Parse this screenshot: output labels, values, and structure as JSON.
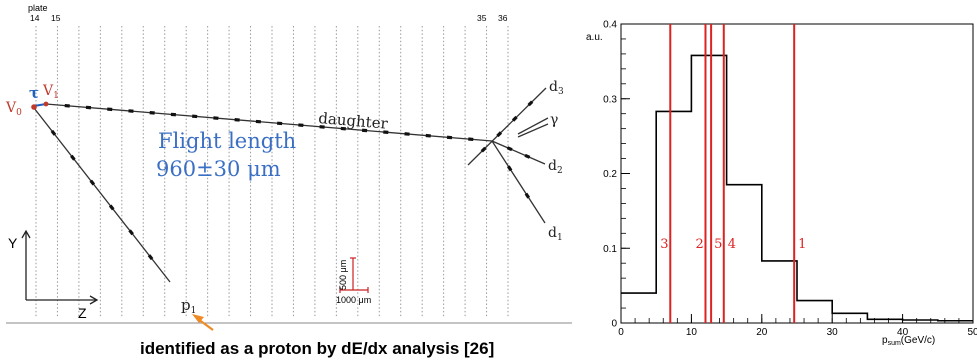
{
  "event_display": {
    "plate_label": "plate",
    "plate_numbers_left": [
      "14",
      "15"
    ],
    "plate_numbers_right": [
      "35",
      "36"
    ],
    "vertex_primary": "V",
    "vertex_primary_sub": "0",
    "vertex_decay": "V",
    "vertex_decay_sub": "1",
    "tau_label": "τ",
    "daughter_label": "daughter",
    "flight_length_title": "Flight length",
    "flight_length_value": "960±30 μm",
    "track_d3": "d",
    "track_d3_sub": "3",
    "track_d2": "d",
    "track_d2_sub": "2",
    "track_d1": "d",
    "track_d1_sub": "1",
    "gamma_label": "γ",
    "proton_label": "p",
    "proton_sub": "1",
    "axis_y": "Y",
    "axis_z": "Z",
    "scale_vertical": "500 μm",
    "scale_horizontal": "1000 μm",
    "caption": "identified as a proton by dE/dx analysis [26]",
    "colors": {
      "vertex": "#c0392b",
      "tau": "#1f5fbf",
      "flight_text": "#3a6fc4",
      "scale": "#cc2222",
      "arrow": "#f08a24"
    }
  },
  "chart_data": {
    "type": "histogram",
    "ylabel": "a.u.",
    "xlabel": "p",
    "xlabel_sub": "sum",
    "xlabel_unit": "(GeV/c)",
    "xlim": [
      0,
      50
    ],
    "ylim": [
      0,
      0.4
    ],
    "x_ticks": [
      0,
      10,
      20,
      30,
      40,
      50
    ],
    "y_ticks": [
      0,
      0.1,
      0.2,
      0.3,
      0.4
    ],
    "bin_edges": [
      0,
      5,
      10,
      15,
      20,
      25,
      30,
      35,
      40,
      45,
      50
    ],
    "values": [
      0.04,
      0.283,
      0.358,
      0.185,
      0.083,
      0.03,
      0.013,
      0.005,
      0.004,
      0.003
    ],
    "markers": [
      {
        "label": "3",
        "x": 7
      },
      {
        "label": "2",
        "x": 12
      },
      {
        "label": "5",
        "x": 12.8
      },
      {
        "label": "4",
        "x": 14.6
      },
      {
        "label": "1",
        "x": 24.6
      }
    ],
    "colors": {
      "hist": "#000000",
      "markers": "#dd2222"
    }
  }
}
